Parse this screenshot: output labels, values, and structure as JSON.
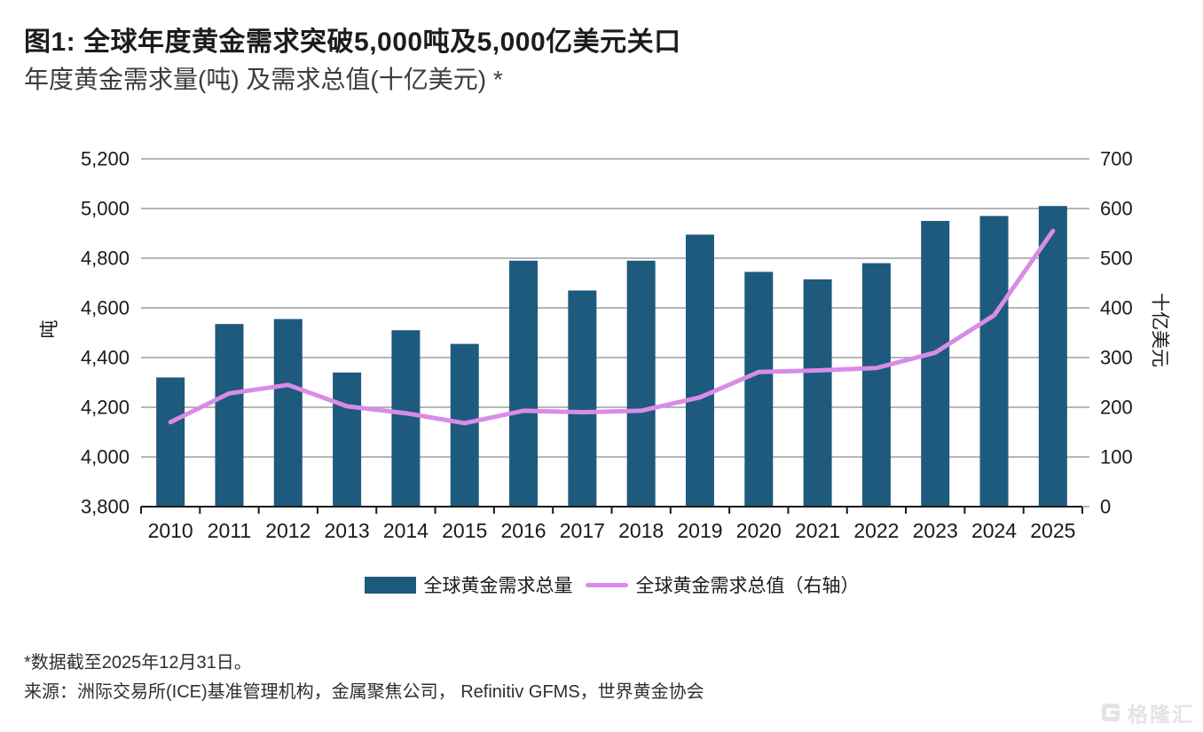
{
  "header": {
    "title": "图1: 全球年度黄金需求突破5,000吨及5,000亿美元关口",
    "subtitle": "年度黄金需求量(吨) 及需求总值(十亿美元) *"
  },
  "legend": {
    "bars_label": "全球黄金需求总量",
    "line_label": "全球黄金需求总值（右轴）"
  },
  "footnotes": {
    "note": "*数据截至2025年12月31日。",
    "source": "来源：洲际交易所(ICE)基准管理机构，金属聚焦公司， Refinitiv GFMS，世界黄金协会"
  },
  "watermark": {
    "logo_text": "格隆汇"
  },
  "colors": {
    "bar": "#1E5A7D",
    "line": "#D98BE8",
    "grid": "#9E9E9E",
    "axis": "#1A1A1A",
    "tick_text": "#1A1A1A"
  },
  "chart_data": {
    "type": "bar",
    "title": "图1: 全球年度黄金需求突破5,000吨及5,000亿美元关口",
    "subtitle": "年度黄金需求量(吨) 及需求总值(十亿美元) *",
    "categories": [
      "2010",
      "2011",
      "2012",
      "2013",
      "2014",
      "2015",
      "2016",
      "2017",
      "2018",
      "2019",
      "2020",
      "2021",
      "2022",
      "2023",
      "2024",
      "2025"
    ],
    "series": [
      {
        "name": "全球黄金需求总量",
        "type": "bar",
        "axis": "left",
        "unit": "吨",
        "values": [
          4320,
          4535,
          4555,
          4340,
          4510,
          4455,
          4790,
          4670,
          4790,
          4895,
          4745,
          4715,
          4780,
          4950,
          4970,
          5010
        ]
      },
      {
        "name": "全球黄金需求总值（右轴）",
        "type": "line",
        "axis": "right",
        "unit": "十亿美元",
        "values": [
          170,
          228,
          245,
          202,
          188,
          168,
          193,
          190,
          193,
          220,
          271,
          274,
          279,
          310,
          385,
          555
        ]
      }
    ],
    "left_axis": {
      "label": "吨",
      "min": 3800,
      "max": 5200,
      "tick_step": 200,
      "ticks": [
        "3,800",
        "4,000",
        "4,200",
        "4,400",
        "4,600",
        "4,800",
        "5,000",
        "5,200"
      ]
    },
    "right_axis": {
      "label": "十亿美元",
      "min": 0,
      "max": 700,
      "tick_step": 100,
      "ticks": [
        "0",
        "100",
        "200",
        "300",
        "400",
        "500",
        "600",
        "700"
      ]
    },
    "grid": true,
    "legend_position": "bottom"
  }
}
